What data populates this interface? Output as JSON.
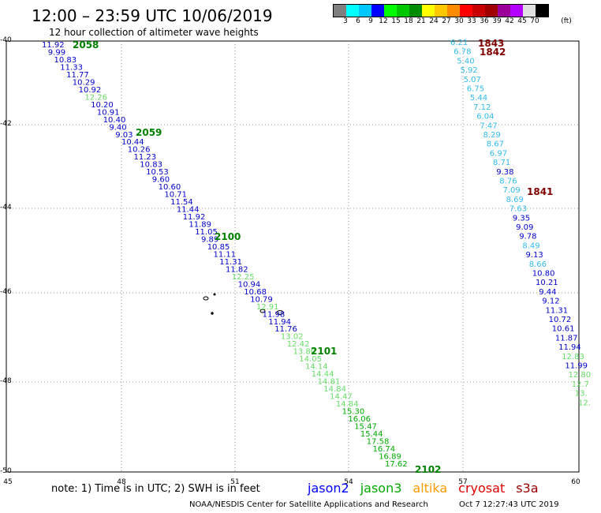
{
  "title": "12:00 – 23:59 UTC 10/06/2019",
  "subtitle": "12 hour collection of altimeter wave heights",
  "colorbar": {
    "colors": [
      "#7f7f7f",
      "#00ffff",
      "#00c8ff",
      "#0000ff",
      "#00ff00",
      "#00c800",
      "#008c00",
      "#ffff00",
      "#ffc800",
      "#ff8c00",
      "#ff0000",
      "#c80000",
      "#a00000",
      "#9b009b",
      "#b400ff",
      "#e1e1e1",
      "#000000"
    ],
    "labels": [
      "3",
      "6",
      "9",
      "12",
      "15",
      "18",
      "21",
      "24",
      "27",
      "30",
      "33",
      "36",
      "39",
      "42",
      "45",
      "70"
    ],
    "unit": "(ft)"
  },
  "axes": {
    "y_ticks": [
      "-40",
      "-42",
      "-44",
      "-46",
      "-48",
      "-50"
    ],
    "x_ticks": [
      "45",
      "48",
      "51",
      "54",
      "57",
      "60"
    ]
  },
  "tracks": [
    {
      "label": "2058",
      "color": "#008000"
    },
    {
      "label": "2059",
      "color": "#008000"
    },
    {
      "label": "2100",
      "color": "#008000"
    },
    {
      "label": "2101",
      "color": "#008000"
    },
    {
      "label": "2102",
      "color": "#008000"
    },
    {
      "label": "1843",
      "color": "#800000"
    },
    {
      "label": "1842",
      "color": "#800000"
    },
    {
      "label": "1841",
      "color": "#800000"
    }
  ],
  "track_a_values": [
    "11.92",
    "9.99",
    "10.83",
    "11.33",
    "11.77",
    "10.29",
    "10.92",
    "12.26",
    "10.20",
    "10.91",
    "10.40",
    "9.40",
    "9.03",
    "10.44",
    "10.26",
    "11.23",
    "10.83",
    "10.53",
    "9.60",
    "10.60",
    "10.71",
    "11.54",
    "11.44",
    "11.92",
    "11.89",
    "11.05",
    "9.89",
    "10.85",
    "11.11",
    "11.31",
    "11.82",
    "12.25",
    "10.94",
    "10.68",
    "10.79",
    "12.91",
    "11.98",
    "11.94",
    "11.76",
    "13.02",
    "12.42",
    "13.80",
    "14.05",
    "14.14",
    "14.44",
    "14.81",
    "14.84",
    "14.47",
    "14.84",
    "15.30",
    "16.06",
    "15.47",
    "15.44",
    "17.58",
    "16.74",
    "16.89",
    "17.62"
  ],
  "track_a_colors": [
    "#0000cc",
    "#0000cc",
    "#0000cc",
    "#0000cc",
    "#0000cc",
    "#0000cc",
    "#0000cc",
    "#66dd66",
    "#0000cc",
    "#0000cc",
    "#0000cc",
    "#0000cc",
    "#0000cc",
    "#0000cc",
    "#0000cc",
    "#0000cc",
    "#0000cc",
    "#0000cc",
    "#0000cc",
    "#0000cc",
    "#0000cc",
    "#0000cc",
    "#0000cc",
    "#0000cc",
    "#0000cc",
    "#0000cc",
    "#0000cc",
    "#0000cc",
    "#0000cc",
    "#0000cc",
    "#0000cc",
    "#66dd66",
    "#0000cc",
    "#0000cc",
    "#0000cc",
    "#66dd66",
    "#0000cc",
    "#0000cc",
    "#0000cc",
    "#66dd66",
    "#66dd66",
    "#66dd66",
    "#66dd66",
    "#66dd66",
    "#66dd66",
    "#66dd66",
    "#66dd66",
    "#66dd66",
    "#66dd66",
    "#00aa00",
    "#00aa00",
    "#00aa00",
    "#00aa00",
    "#00aa00",
    "#00aa00",
    "#00aa00",
    "#00aa00"
  ],
  "track_b_values": [
    "6.21",
    "6.78",
    "5.40",
    "5.92",
    "5.07",
    "6.75",
    "5.44",
    "7.12",
    "6.04",
    "7.47",
    "8.29",
    "8.67",
    "6.97",
    "8.71",
    "9.38",
    "8.76",
    "7.09",
    "8.69",
    "7.63",
    "9.35",
    "9.09",
    "9.78",
    "8.49",
    "9.13",
    "8.66",
    "10.80",
    "10.21",
    "9.44",
    "9.12",
    "11.31",
    "10.72",
    "10.61",
    "11.87",
    "11.94",
    "12.83",
    "11.99",
    "12.80",
    "12.7",
    "13.",
    "12."
  ],
  "track_b_colors": [
    "#33bbee",
    "#33bbee",
    "#33bbee",
    "#33bbee",
    "#33bbee",
    "#33bbee",
    "#33bbee",
    "#33bbee",
    "#33bbee",
    "#33bbee",
    "#33bbee",
    "#33bbee",
    "#33bbee",
    "#33bbee",
    "#0000cc",
    "#33bbee",
    "#33bbee",
    "#33bbee",
    "#33bbee",
    "#0000cc",
    "#0000cc",
    "#0000cc",
    "#33bbee",
    "#0000cc",
    "#33bbee",
    "#0000cc",
    "#0000cc",
    "#0000cc",
    "#0000cc",
    "#0000cc",
    "#0000cc",
    "#0000cc",
    "#0000cc",
    "#0000cc",
    "#66dd66",
    "#0000cc",
    "#66dd66",
    "#66dd66",
    "#66dd66",
    "#66dd66"
  ],
  "note": "note:  1) Time is in UTC;  2) SWH is in feet",
  "legend": [
    {
      "name": "jason2",
      "color": "#0000ff"
    },
    {
      "name": "jason3",
      "color": "#00aa00"
    },
    {
      "name": "altika",
      "color": "#ff9900"
    },
    {
      "name": "cryosat",
      "color": "#dd0000"
    },
    {
      "name": "s3a",
      "color": "#990000"
    }
  ],
  "footer": "NOAA/NESDIS Center for Satellite Applications and Research",
  "footer_time": "Oct  7 12:27:43 UTC 2019"
}
